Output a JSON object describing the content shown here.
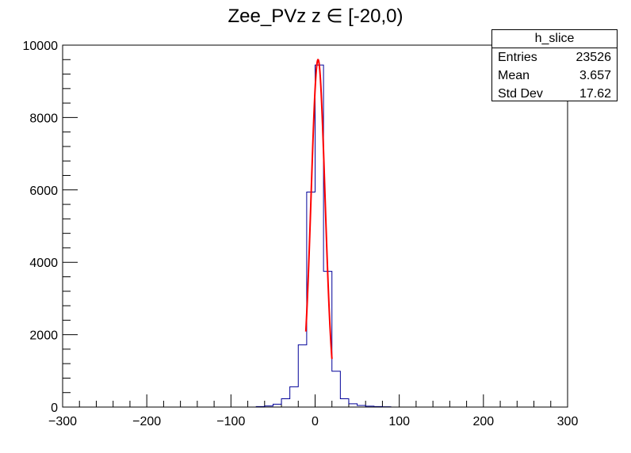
{
  "title": "Zee_PVz z  ∈ [-20,0)",
  "stats": {
    "name": "h_slice",
    "rows": [
      {
        "label": "Entries",
        "value": "23526"
      },
      {
        "label": "Mean",
        "value": "3.657"
      },
      {
        "label": "Std Dev",
        "value": "17.62"
      }
    ]
  },
  "chart_data": {
    "type": "bar",
    "xlim": [
      -300,
      300
    ],
    "ylim": [
      0,
      10000
    ],
    "xticks": [
      -300,
      -200,
      -100,
      0,
      100,
      200,
      300
    ],
    "yticks": [
      0,
      2000,
      4000,
      6000,
      8000,
      10000
    ],
    "histogram": {
      "color": "#000099",
      "bin_width": 10,
      "bins": [
        {
          "x0": -70,
          "value": 15
        },
        {
          "x0": -60,
          "value": 30
        },
        {
          "x0": -50,
          "value": 80
        },
        {
          "x0": -40,
          "value": 230
        },
        {
          "x0": -30,
          "value": 560
        },
        {
          "x0": -20,
          "value": 1720
        },
        {
          "x0": -10,
          "value": 5940
        },
        {
          "x0": 0,
          "value": 9450
        },
        {
          "x0": 10,
          "value": 3750
        },
        {
          "x0": 20,
          "value": 990
        },
        {
          "x0": 30,
          "value": 230
        },
        {
          "x0": 40,
          "value": 90
        },
        {
          "x0": 50,
          "value": 45
        },
        {
          "x0": 60,
          "value": 25
        },
        {
          "x0": 70,
          "value": 15
        },
        {
          "x0": 80,
          "value": 8
        }
      ]
    },
    "fit": {
      "type": "gaussian",
      "color": "#ff0000",
      "amplitude": 9600,
      "mean": 3.5,
      "sigma": 8.3,
      "range": [
        -11,
        20
      ]
    }
  }
}
